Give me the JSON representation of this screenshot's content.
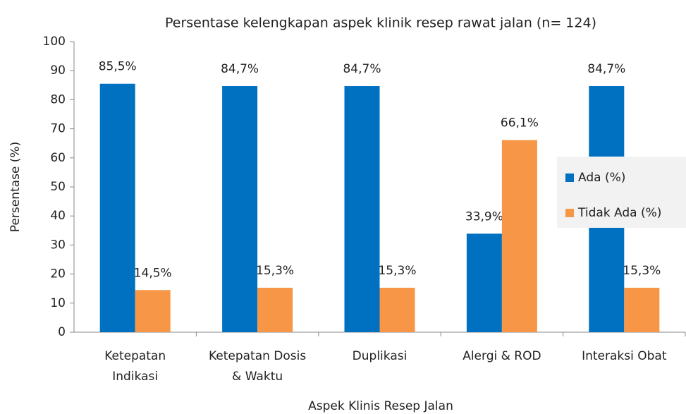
{
  "chart_data": {
    "type": "bar",
    "title": "Persentase kelengkapan aspek klinik resep rawat jalan (n= 124)",
    "x_label": "Aspek Klinis Resep Jalan",
    "y_label": "Persentase (%)",
    "categories": [
      [
        "Ketepatan",
        "Indikasi"
      ],
      [
        "Ketepatan Dosis",
        "& Waktu"
      ],
      [
        "Duplikasi"
      ],
      [
        "Alergi & ROD"
      ],
      [
        "Interaksi Obat"
      ]
    ],
    "series": [
      {
        "name": "Ada (%)",
        "color": "#0070c0",
        "values": [
          85.5,
          84.7,
          84.7,
          33.9,
          84.7
        ],
        "value_labels": [
          "85,5%",
          "84,7%",
          "84,7%",
          "33,9%",
          "84,7%"
        ]
      },
      {
        "name": "Tidak Ada (%)",
        "color": "#f79646",
        "values": [
          14.5,
          15.3,
          15.3,
          66.1,
          15.3
        ],
        "value_labels": [
          "14,5%",
          "15,3%",
          "15,3%",
          "66,1%",
          "15,3%"
        ]
      }
    ],
    "ylim": [
      0,
      100
    ],
    "yticks": [
      0,
      10,
      20,
      30,
      40,
      50,
      60,
      70,
      80,
      90,
      100
    ],
    "grid": false,
    "legend": "right"
  }
}
